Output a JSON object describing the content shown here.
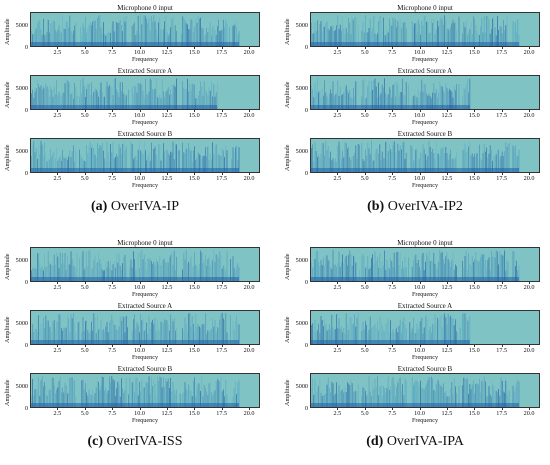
{
  "colors": {
    "background": "#7fc3c4",
    "spectral_dark": "#1f5fa8",
    "mid": "#4a9fc2"
  },
  "chart_data": [
    {
      "type": "heatmap",
      "panel": "a",
      "caption_letter": "(a)",
      "caption_text": "OverIVA-IP",
      "subplots": [
        {
          "title": "Microphone 0 input",
          "xlabel": "Frequency",
          "ylabel": "Amplitude",
          "x_ticks": [
            "2.5",
            "5.0",
            "7.5",
            "10.0",
            "12.5",
            "15.0",
            "17.5",
            "20.0"
          ],
          "y_ticks": [
            "0",
            "5000"
          ],
          "xlim": [
            0,
            21
          ],
          "ylim": [
            0,
            8000
          ],
          "activity_end": 19.0
        },
        {
          "title": "Extracted Source A",
          "xlabel": "Frequency",
          "ylabel": "Amplitude",
          "x_ticks": [
            "2.5",
            "5.0",
            "7.5",
            "10.0",
            "12.5",
            "15.0",
            "17.5",
            "20.0"
          ],
          "y_ticks": [
            "0",
            "5000"
          ],
          "xlim": [
            0,
            21
          ],
          "ylim": [
            0,
            8000
          ],
          "activity_end": 17.0
        },
        {
          "title": "Extracted Source B",
          "xlabel": "Frequency",
          "ylabel": "Amplitude",
          "x_ticks": [
            "2.5",
            "5.0",
            "7.5",
            "10.0",
            "12.5",
            "15.0",
            "17.5",
            "20.0"
          ],
          "y_ticks": [
            "0",
            "5000"
          ],
          "xlim": [
            0,
            21
          ],
          "ylim": [
            0,
            8000
          ],
          "activity_end": 19.0
        }
      ]
    },
    {
      "type": "heatmap",
      "panel": "b",
      "caption_letter": "(b)",
      "caption_text": "OverIVA-IP2",
      "subplots": [
        {
          "title": "Microphone 0 input",
          "xlabel": "Frequency",
          "ylabel": "Amplitude",
          "x_ticks": [
            "2.5",
            "5.0",
            "7.5",
            "10.0",
            "12.5",
            "15.0",
            "17.5",
            "20.0"
          ],
          "y_ticks": [
            "0",
            "5000"
          ],
          "xlim": [
            0,
            21
          ],
          "ylim": [
            0,
            8000
          ],
          "activity_end": 19.0
        },
        {
          "title": "Extracted Source A",
          "xlabel": "Frequency",
          "ylabel": "Amplitude",
          "x_ticks": [
            "2.5",
            "5.0",
            "7.5",
            "10.0",
            "12.5",
            "15.0",
            "17.5",
            "20.0"
          ],
          "y_ticks": [
            "0",
            "5000"
          ],
          "xlim": [
            0,
            21
          ],
          "ylim": [
            0,
            8000
          ],
          "activity_end": 14.5
        },
        {
          "title": "Extracted Source B",
          "xlabel": "Frequency",
          "ylabel": "Amplitude",
          "x_ticks": [
            "2.5",
            "5.0",
            "7.5",
            "10.0",
            "12.5",
            "15.0",
            "17.5",
            "20.0"
          ],
          "y_ticks": [
            "0",
            "5000"
          ],
          "xlim": [
            0,
            21
          ],
          "ylim": [
            0,
            8000
          ],
          "activity_end": 19.0
        }
      ]
    },
    {
      "type": "heatmap",
      "panel": "c",
      "caption_letter": "(c)",
      "caption_text": "OverIVA-ISS",
      "subplots": [
        {
          "title": "Microphone 0 input",
          "xlabel": "Frequency",
          "ylabel": "Amplitude",
          "x_ticks": [
            "2.5",
            "5.0",
            "7.5",
            "10.0",
            "12.5",
            "15.0",
            "17.5",
            "20.0"
          ],
          "y_ticks": [
            "0",
            "5000"
          ],
          "xlim": [
            0,
            21
          ],
          "ylim": [
            0,
            8000
          ],
          "activity_end": 19.0
        },
        {
          "title": "Extracted Source A",
          "xlabel": "Frequency",
          "ylabel": "Amplitude",
          "x_ticks": [
            "2.5",
            "5.0",
            "7.5",
            "10.0",
            "12.5",
            "15.0",
            "17.5",
            "20.0"
          ],
          "y_ticks": [
            "0",
            "5000"
          ],
          "xlim": [
            0,
            21
          ],
          "ylim": [
            0,
            8000
          ],
          "activity_end": 19.0
        },
        {
          "title": "Extracted Source B",
          "xlabel": "Frequency",
          "ylabel": "Amplitude",
          "x_ticks": [
            "2.5",
            "5.0",
            "7.5",
            "10.0",
            "12.5",
            "15.0",
            "17.5",
            "20.0"
          ],
          "y_ticks": [
            "0",
            "5000"
          ],
          "xlim": [
            0,
            21
          ],
          "ylim": [
            0,
            8000
          ],
          "activity_end": 19.0
        }
      ]
    },
    {
      "type": "heatmap",
      "panel": "d",
      "caption_letter": "(d)",
      "caption_text": "OverIVA-IPA",
      "subplots": [
        {
          "title": "Microphone 0 input",
          "xlabel": "Frequency",
          "ylabel": "Amplitude",
          "x_ticks": [
            "2.5",
            "5.0",
            "7.5",
            "10.0",
            "12.5",
            "15.0",
            "17.5",
            "20.0"
          ],
          "y_ticks": [
            "0",
            "5000"
          ],
          "xlim": [
            0,
            21
          ],
          "ylim": [
            0,
            8000
          ],
          "activity_end": 19.0
        },
        {
          "title": "Extracted Source A",
          "xlabel": "Frequency",
          "ylabel": "Amplitude",
          "x_ticks": [
            "2.5",
            "5.0",
            "7.5",
            "10.0",
            "12.5",
            "15.0",
            "17.5",
            "20.0"
          ],
          "y_ticks": [
            "0",
            "5000"
          ],
          "xlim": [
            0,
            21
          ],
          "ylim": [
            0,
            8000
          ],
          "activity_end": 14.5
        },
        {
          "title": "Extracted Source B",
          "xlabel": "Frequency",
          "ylabel": "Amplitude",
          "x_ticks": [
            "2.5",
            "5.0",
            "7.5",
            "10.0",
            "12.5",
            "15.0",
            "17.5",
            "20.0"
          ],
          "y_ticks": [
            "0",
            "5000"
          ],
          "xlim": [
            0,
            21
          ],
          "ylim": [
            0,
            8000
          ],
          "activity_end": 19.0
        }
      ]
    }
  ]
}
